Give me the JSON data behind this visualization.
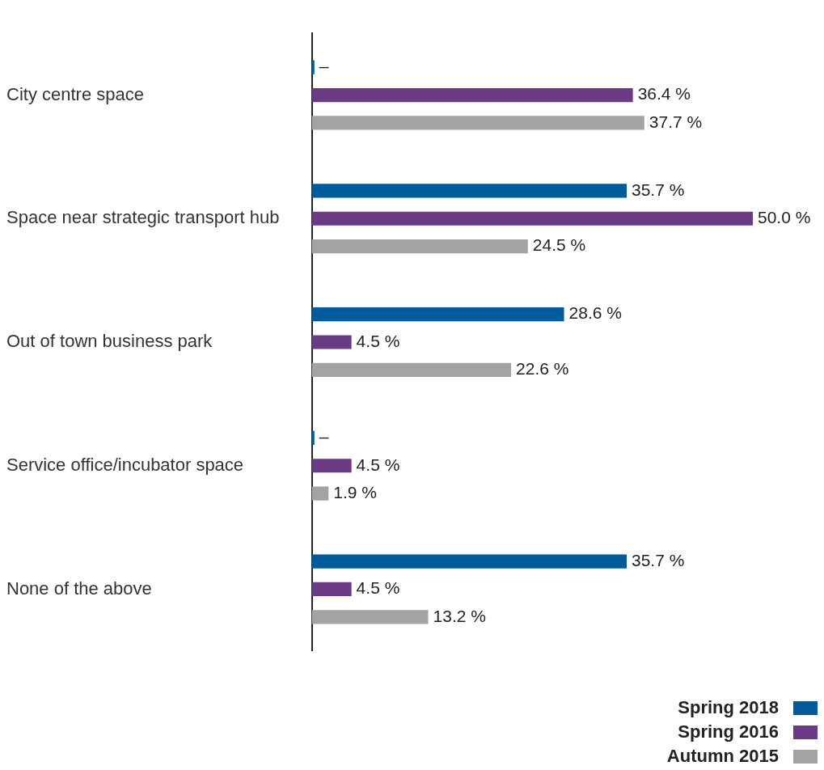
{
  "chart_data": {
    "type": "bar",
    "orientation": "horizontal",
    "categories": [
      "City centre space",
      "Space near strategic transport hub",
      "Out of town business park",
      "Service office/incubator space",
      "None of the above"
    ],
    "series": [
      {
        "name": "Spring 2018",
        "color": "#005b9a",
        "values": [
          0.3,
          35.7,
          28.6,
          0.3,
          35.7
        ],
        "value_labels": [
          "–",
          "35.7 %",
          "28.6 %",
          "–",
          "35.7 %"
        ]
      },
      {
        "name": "Spring 2016",
        "color": "#6a3a84",
        "values": [
          36.4,
          50.0,
          4.5,
          4.5,
          4.5
        ],
        "value_labels": [
          "36.4 %",
          "50.0 %",
          "4.5 %",
          "4.5 %",
          "4.5 %"
        ]
      },
      {
        "name": "Autumn 2015",
        "color": "#a3a3a3",
        "values": [
          37.7,
          24.5,
          22.6,
          1.9,
          13.2
        ],
        "value_labels": [
          "37.7 %",
          "24.5 %",
          "22.6 %",
          "1.9 %",
          "13.2 %"
        ]
      }
    ],
    "tick_labels": "y",
    "grid": false,
    "legend": "bottom right"
  }
}
